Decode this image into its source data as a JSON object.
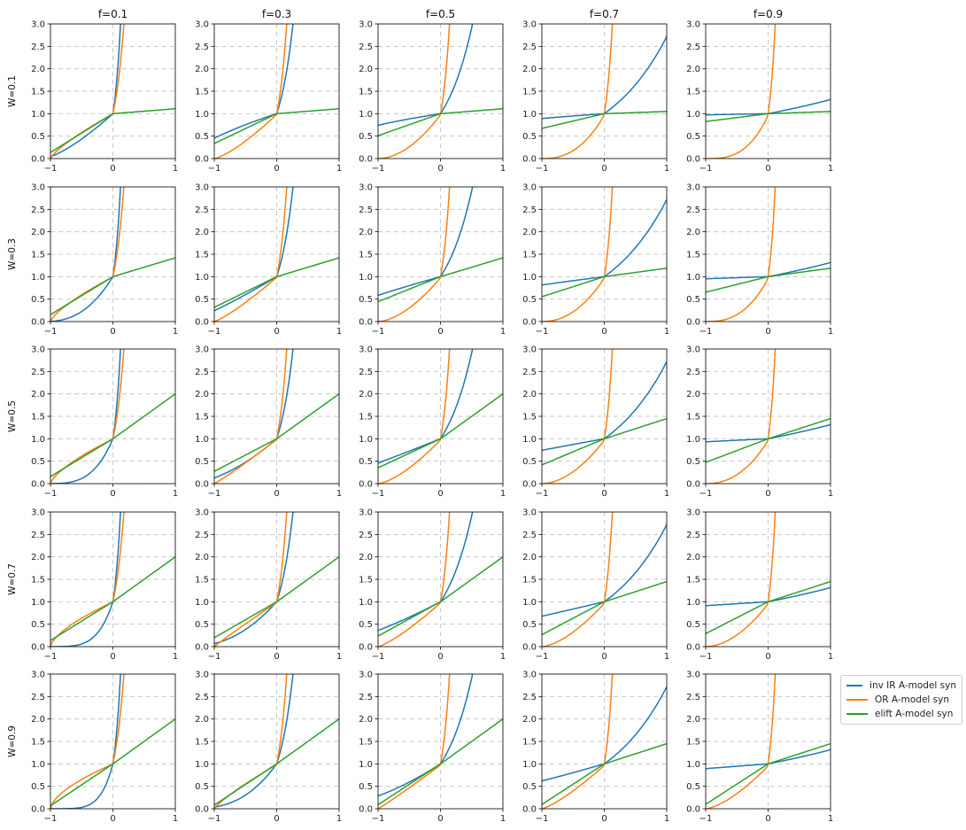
{
  "chart_data": {
    "type": "line",
    "layout": "grid",
    "column_titles": [
      "f=0.1",
      "f=0.3",
      "f=0.5",
      "f=0.7",
      "f=0.9"
    ],
    "row_labels": [
      "W=0.1",
      "W=0.3",
      "W=0.5",
      "W=0.7",
      "W=0.9"
    ],
    "f_values": [
      0.1,
      0.3,
      0.5,
      0.7,
      0.9
    ],
    "w_values": [
      0.1,
      0.3,
      0.5,
      0.7,
      0.9
    ],
    "xlim": [
      -1,
      1
    ],
    "ylim": [
      0,
      3
    ],
    "x_ticks": [
      -1,
      0,
      1
    ],
    "x_tick_labels": [
      "−1",
      "0",
      "1"
    ],
    "y_ticks": [
      0,
      0.5,
      1,
      1.5,
      2,
      2.5,
      3
    ],
    "y_tick_labels": [
      "0.0",
      "0.5",
      "1.0",
      "1.5",
      "2.0",
      "2.5",
      "3.0"
    ],
    "grid": true,
    "grid_style": "dashed",
    "legend_position": "lower-right (outside)",
    "series": [
      {
        "name": "inv IR A-model syn",
        "color": "#1f77b4"
      },
      {
        "name": "OR A-model syn",
        "color": "#ff7f0e"
      },
      {
        "name": "elift A-model syn",
        "color": "#2ca02c"
      }
    ]
  }
}
